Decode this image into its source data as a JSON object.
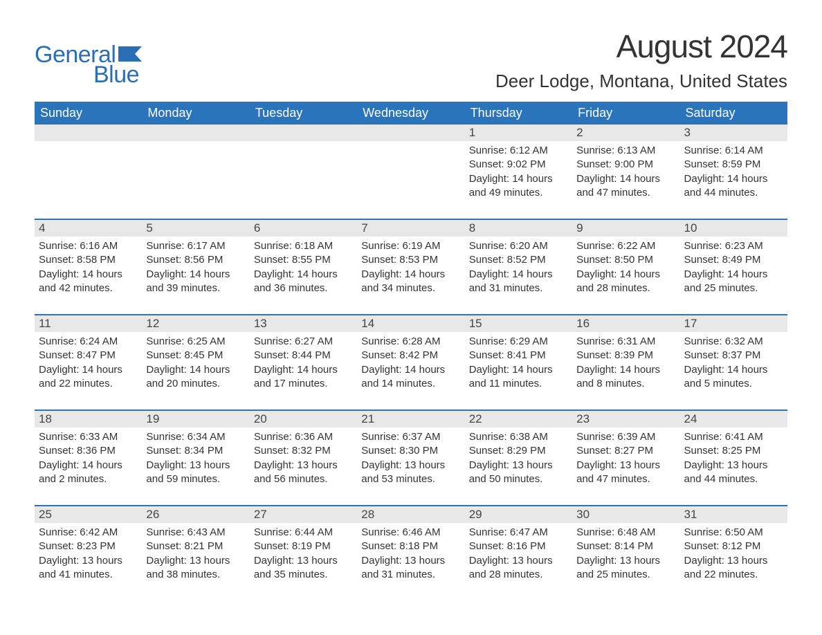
{
  "logo": {
    "general": "General",
    "blue": "Blue"
  },
  "title": "August 2024",
  "location": "Deer Lodge, Montana, United States",
  "colors": {
    "brand": "#2a74bb",
    "logo": "#2a6eb5",
    "daynum_bg": "#e8e8e8",
    "text": "#333333",
    "white": "#ffffff"
  },
  "day_headers": [
    "Sunday",
    "Monday",
    "Tuesday",
    "Wednesday",
    "Thursday",
    "Friday",
    "Saturday"
  ],
  "weeks": [
    [
      {
        "n": "",
        "sunrise": "",
        "sunset": "",
        "daylight": ""
      },
      {
        "n": "",
        "sunrise": "",
        "sunset": "",
        "daylight": ""
      },
      {
        "n": "",
        "sunrise": "",
        "sunset": "",
        "daylight": ""
      },
      {
        "n": "",
        "sunrise": "",
        "sunset": "",
        "daylight": ""
      },
      {
        "n": "1",
        "sunrise": "Sunrise: 6:12 AM",
        "sunset": "Sunset: 9:02 PM",
        "daylight": "Daylight: 14 hours and 49 minutes."
      },
      {
        "n": "2",
        "sunrise": "Sunrise: 6:13 AM",
        "sunset": "Sunset: 9:00 PM",
        "daylight": "Daylight: 14 hours and 47 minutes."
      },
      {
        "n": "3",
        "sunrise": "Sunrise: 6:14 AM",
        "sunset": "Sunset: 8:59 PM",
        "daylight": "Daylight: 14 hours and 44 minutes."
      }
    ],
    [
      {
        "n": "4",
        "sunrise": "Sunrise: 6:16 AM",
        "sunset": "Sunset: 8:58 PM",
        "daylight": "Daylight: 14 hours and 42 minutes."
      },
      {
        "n": "5",
        "sunrise": "Sunrise: 6:17 AM",
        "sunset": "Sunset: 8:56 PM",
        "daylight": "Daylight: 14 hours and 39 minutes."
      },
      {
        "n": "6",
        "sunrise": "Sunrise: 6:18 AM",
        "sunset": "Sunset: 8:55 PM",
        "daylight": "Daylight: 14 hours and 36 minutes."
      },
      {
        "n": "7",
        "sunrise": "Sunrise: 6:19 AM",
        "sunset": "Sunset: 8:53 PM",
        "daylight": "Daylight: 14 hours and 34 minutes."
      },
      {
        "n": "8",
        "sunrise": "Sunrise: 6:20 AM",
        "sunset": "Sunset: 8:52 PM",
        "daylight": "Daylight: 14 hours and 31 minutes."
      },
      {
        "n": "9",
        "sunrise": "Sunrise: 6:22 AM",
        "sunset": "Sunset: 8:50 PM",
        "daylight": "Daylight: 14 hours and 28 minutes."
      },
      {
        "n": "10",
        "sunrise": "Sunrise: 6:23 AM",
        "sunset": "Sunset: 8:49 PM",
        "daylight": "Daylight: 14 hours and 25 minutes."
      }
    ],
    [
      {
        "n": "11",
        "sunrise": "Sunrise: 6:24 AM",
        "sunset": "Sunset: 8:47 PM",
        "daylight": "Daylight: 14 hours and 22 minutes."
      },
      {
        "n": "12",
        "sunrise": "Sunrise: 6:25 AM",
        "sunset": "Sunset: 8:45 PM",
        "daylight": "Daylight: 14 hours and 20 minutes."
      },
      {
        "n": "13",
        "sunrise": "Sunrise: 6:27 AM",
        "sunset": "Sunset: 8:44 PM",
        "daylight": "Daylight: 14 hours and 17 minutes."
      },
      {
        "n": "14",
        "sunrise": "Sunrise: 6:28 AM",
        "sunset": "Sunset: 8:42 PM",
        "daylight": "Daylight: 14 hours and 14 minutes."
      },
      {
        "n": "15",
        "sunrise": "Sunrise: 6:29 AM",
        "sunset": "Sunset: 8:41 PM",
        "daylight": "Daylight: 14 hours and 11 minutes."
      },
      {
        "n": "16",
        "sunrise": "Sunrise: 6:31 AM",
        "sunset": "Sunset: 8:39 PM",
        "daylight": "Daylight: 14 hours and 8 minutes."
      },
      {
        "n": "17",
        "sunrise": "Sunrise: 6:32 AM",
        "sunset": "Sunset: 8:37 PM",
        "daylight": "Daylight: 14 hours and 5 minutes."
      }
    ],
    [
      {
        "n": "18",
        "sunrise": "Sunrise: 6:33 AM",
        "sunset": "Sunset: 8:36 PM",
        "daylight": "Daylight: 14 hours and 2 minutes."
      },
      {
        "n": "19",
        "sunrise": "Sunrise: 6:34 AM",
        "sunset": "Sunset: 8:34 PM",
        "daylight": "Daylight: 13 hours and 59 minutes."
      },
      {
        "n": "20",
        "sunrise": "Sunrise: 6:36 AM",
        "sunset": "Sunset: 8:32 PM",
        "daylight": "Daylight: 13 hours and 56 minutes."
      },
      {
        "n": "21",
        "sunrise": "Sunrise: 6:37 AM",
        "sunset": "Sunset: 8:30 PM",
        "daylight": "Daylight: 13 hours and 53 minutes."
      },
      {
        "n": "22",
        "sunrise": "Sunrise: 6:38 AM",
        "sunset": "Sunset: 8:29 PM",
        "daylight": "Daylight: 13 hours and 50 minutes."
      },
      {
        "n": "23",
        "sunrise": "Sunrise: 6:39 AM",
        "sunset": "Sunset: 8:27 PM",
        "daylight": "Daylight: 13 hours and 47 minutes."
      },
      {
        "n": "24",
        "sunrise": "Sunrise: 6:41 AM",
        "sunset": "Sunset: 8:25 PM",
        "daylight": "Daylight: 13 hours and 44 minutes."
      }
    ],
    [
      {
        "n": "25",
        "sunrise": "Sunrise: 6:42 AM",
        "sunset": "Sunset: 8:23 PM",
        "daylight": "Daylight: 13 hours and 41 minutes."
      },
      {
        "n": "26",
        "sunrise": "Sunrise: 6:43 AM",
        "sunset": "Sunset: 8:21 PM",
        "daylight": "Daylight: 13 hours and 38 minutes."
      },
      {
        "n": "27",
        "sunrise": "Sunrise: 6:44 AM",
        "sunset": "Sunset: 8:19 PM",
        "daylight": "Daylight: 13 hours and 35 minutes."
      },
      {
        "n": "28",
        "sunrise": "Sunrise: 6:46 AM",
        "sunset": "Sunset: 8:18 PM",
        "daylight": "Daylight: 13 hours and 31 minutes."
      },
      {
        "n": "29",
        "sunrise": "Sunrise: 6:47 AM",
        "sunset": "Sunset: 8:16 PM",
        "daylight": "Daylight: 13 hours and 28 minutes."
      },
      {
        "n": "30",
        "sunrise": "Sunrise: 6:48 AM",
        "sunset": "Sunset: 8:14 PM",
        "daylight": "Daylight: 13 hours and 25 minutes."
      },
      {
        "n": "31",
        "sunrise": "Sunrise: 6:50 AM",
        "sunset": "Sunset: 8:12 PM",
        "daylight": "Daylight: 13 hours and 22 minutes."
      }
    ]
  ]
}
